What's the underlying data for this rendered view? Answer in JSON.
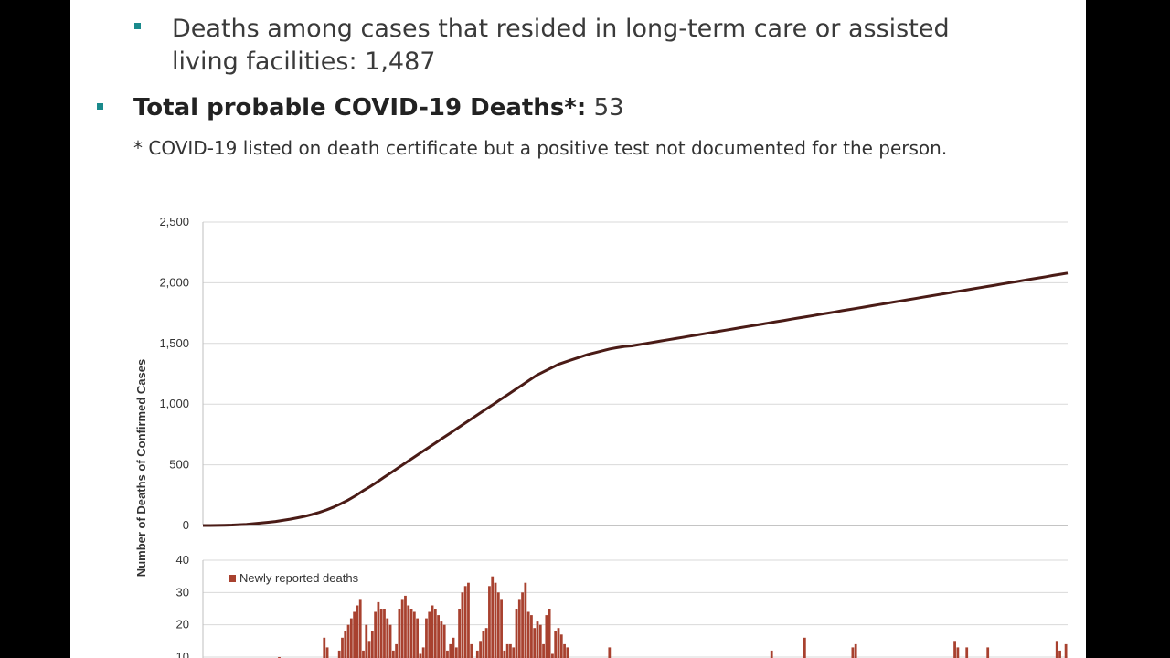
{
  "text": {
    "sub_bullet": "Deaths among cases that resided in long-term care or assisted living facilities: 1,487",
    "total_label": "Total probable COVID-19 Deaths*:",
    "total_value": "53",
    "footnote": "* COVID-19 listed on death certificate but a positive test not documented for the person."
  },
  "colors": {
    "accent_bullet": "#1a8a8c",
    "line": "#4a1b16",
    "bar": "#a8412f",
    "grid": "#d9d9d9"
  },
  "chart_data": [
    {
      "type": "line",
      "ylabel": "Number of Deaths of Confirmed Cases",
      "ylim": [
        0,
        2500
      ],
      "yticks": [
        "0",
        "500",
        "1,000",
        "1,500",
        "2,000",
        "2,500"
      ],
      "grid": true,
      "series": [
        {
          "values": [
            0,
            0,
            1,
            2,
            4,
            7,
            10,
            15,
            20,
            26,
            33,
            42,
            52,
            63,
            75,
            90,
            108,
            128,
            152,
            180,
            210,
            245,
            285,
            320,
            360,
            400,
            440,
            480,
            520,
            560,
            600,
            640,
            680,
            720,
            760,
            800,
            840,
            880,
            920,
            960,
            1000,
            1040,
            1080,
            1120,
            1160,
            1200,
            1240,
            1270,
            1300,
            1330,
            1350,
            1370,
            1390,
            1410,
            1425,
            1440,
            1455,
            1465,
            1475,
            1480,
            1490,
            1500,
            1510,
            1520,
            1530,
            1540,
            1550,
            1560,
            1570,
            1580,
            1590,
            1600,
            1610,
            1620,
            1630,
            1640,
            1650,
            1660,
            1670,
            1680,
            1690,
            1700,
            1710,
            1720,
            1730,
            1740,
            1750,
            1760,
            1770,
            1780,
            1790,
            1800,
            1810,
            1820,
            1830,
            1840,
            1850,
            1860,
            1870,
            1880,
            1890,
            1900,
            1910,
            1920,
            1930,
            1940,
            1950,
            1960,
            1970,
            1980,
            1990,
            2000,
            2010,
            2020,
            2030,
            2040,
            2050,
            2060,
            2070,
            2080
          ]
        }
      ]
    },
    {
      "type": "bar",
      "ylim": [
        0,
        40
      ],
      "yticks": [
        "10",
        "20",
        "30",
        "40"
      ],
      "legend": "top-left",
      "grid": true,
      "series": [
        {
          "name": "Newly reported deaths",
          "values": [
            0,
            0,
            0,
            0,
            0,
            0,
            0,
            0,
            0,
            0,
            0,
            0,
            0,
            0,
            0,
            0,
            0,
            0,
            0,
            0,
            0,
            0,
            0,
            0,
            0,
            10,
            0,
            0,
            0,
            0,
            0,
            0,
            0,
            0,
            0,
            0,
            0,
            0,
            0,
            0,
            16,
            13,
            0,
            0,
            0,
            12,
            16,
            18,
            20,
            22,
            24,
            26,
            28,
            12,
            20,
            15,
            18,
            24,
            27,
            25,
            25,
            22,
            20,
            12,
            14,
            25,
            28,
            29,
            26,
            25,
            24,
            22,
            11,
            13,
            22,
            24,
            26,
            25,
            23,
            21,
            20,
            12,
            14,
            16,
            13,
            25,
            30,
            32,
            33,
            14,
            0,
            12,
            15,
            18,
            19,
            32,
            35,
            33,
            30,
            28,
            12,
            14,
            14,
            13,
            25,
            28,
            30,
            33,
            24,
            23,
            19,
            21,
            20,
            14,
            23,
            25,
            11,
            18,
            19,
            17,
            14,
            13,
            0,
            0,
            0,
            0,
            0,
            0,
            0,
            0,
            0,
            0,
            0,
            0,
            0,
            13,
            0,
            0,
            0,
            0,
            0,
            0,
            0,
            0,
            0,
            0,
            0,
            0,
            0,
            0,
            0,
            0,
            0,
            0,
            0,
            0,
            0,
            0,
            0,
            0,
            0,
            0,
            0,
            0,
            0,
            0,
            0,
            0,
            0,
            0,
            0,
            0,
            0,
            0,
            0,
            0,
            0,
            0,
            0,
            0,
            0,
            0,
            0,
            0,
            0,
            0,
            0,
            0,
            0,
            12,
            0,
            0,
            0,
            0,
            0,
            0,
            0,
            0,
            0,
            0,
            16,
            0,
            0,
            0,
            0,
            0,
            0,
            0,
            0,
            0,
            0,
            0,
            0,
            0,
            0,
            0,
            13,
            14,
            0,
            0,
            0,
            0,
            0,
            0,
            0,
            0,
            0,
            0,
            0,
            0,
            0,
            0,
            0,
            0,
            0,
            0,
            0,
            0,
            0,
            0,
            0,
            0,
            0,
            0,
            0,
            0,
            0,
            0,
            0,
            0,
            15,
            13,
            0,
            0,
            13,
            0,
            0,
            0,
            0,
            0,
            0,
            13,
            0,
            0,
            0,
            0,
            0,
            0,
            0,
            0,
            0,
            0,
            0,
            0,
            0,
            0,
            0,
            0,
            0,
            0,
            0,
            0,
            0,
            0,
            15,
            12,
            0,
            14
          ]
        }
      ]
    }
  ]
}
